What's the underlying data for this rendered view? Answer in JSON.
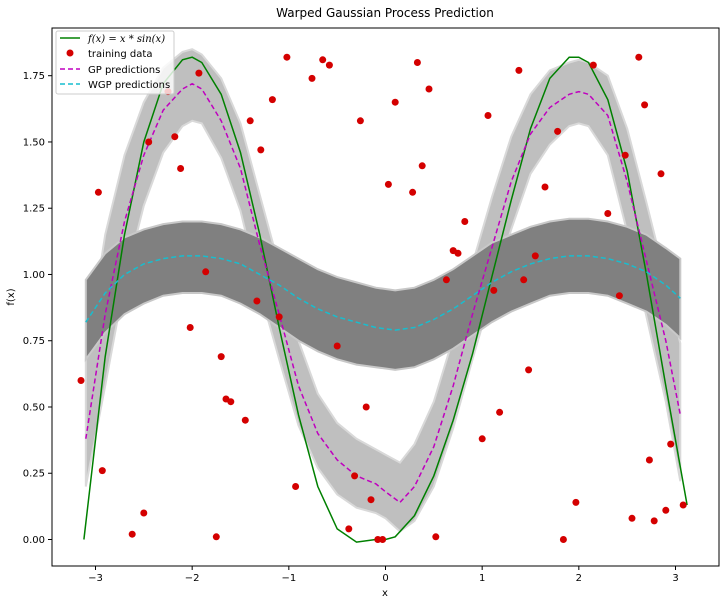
{
  "chart_data": {
    "type": "line",
    "title": "Warped Gaussian Process Prediction",
    "xlabel": "x",
    "ylabel": "f(x)",
    "xlim": [
      -3.45,
      3.45
    ],
    "ylim": [
      -0.1,
      1.93
    ],
    "xticks": [
      -3,
      -2,
      -1,
      0,
      1,
      2,
      3
    ],
    "xtick_labels": [
      "−3",
      "−2",
      "−1",
      "0",
      "1",
      "2",
      "3"
    ],
    "yticks": [
      0,
      0.25,
      0.5,
      0.75,
      1.0,
      1.25,
      1.5,
      1.75
    ],
    "ytick_labels": [
      "0.00",
      "0.25",
      "0.50",
      "0.75",
      "1.00",
      "1.25",
      "1.50",
      "1.75"
    ],
    "legend": {
      "position": "top-left",
      "entries": [
        {
          "label": "f(x) = x * sin(x)",
          "style": "line",
          "color": "#008000",
          "dash": "solid"
        },
        {
          "label": "training data",
          "style": "marker",
          "color": "#d40000"
        },
        {
          "label": "GP predictions",
          "style": "line",
          "color": "#bf00bf",
          "dash": "dashed"
        },
        {
          "label": "WGP predictions",
          "style": "line",
          "color": "#17becf",
          "dash": "dashed"
        }
      ]
    },
    "series": [
      {
        "name": "f(x) = x * sin(x)",
        "color": "#008000",
        "x": [
          -3.12,
          -2.9,
          -2.7,
          -2.5,
          -2.3,
          -2.1,
          -2.0,
          -1.9,
          -1.7,
          -1.5,
          -1.3,
          -1.1,
          -0.9,
          -0.7,
          -0.5,
          -0.3,
          -0.1,
          0.0,
          0.1,
          0.3,
          0.5,
          0.7,
          0.9,
          1.1,
          1.3,
          1.5,
          1.7,
          1.9,
          2.0,
          2.1,
          2.3,
          2.5,
          2.7,
          2.9,
          3.12
        ],
        "y": [
          0.0,
          0.69,
          1.15,
          1.5,
          1.72,
          1.81,
          1.82,
          1.8,
          1.68,
          1.46,
          1.15,
          0.8,
          0.47,
          0.2,
          0.04,
          -0.01,
          0.0,
          0.0,
          0.01,
          0.09,
          0.24,
          0.45,
          0.7,
          0.99,
          1.28,
          1.55,
          1.74,
          1.82,
          1.82,
          1.8,
          1.66,
          1.39,
          1.0,
          0.58,
          0.13
        ]
      },
      {
        "name": "GP predictions",
        "color": "#bf00bf",
        "x": [
          -3.1,
          -2.9,
          -2.7,
          -2.5,
          -2.3,
          -2.1,
          -2.0,
          -1.9,
          -1.7,
          -1.5,
          -1.3,
          -1.1,
          -0.9,
          -0.7,
          -0.5,
          -0.3,
          -0.1,
          0.0,
          0.15,
          0.3,
          0.5,
          0.7,
          0.9,
          1.1,
          1.3,
          1.5,
          1.7,
          1.9,
          2.0,
          2.1,
          2.3,
          2.5,
          2.7,
          2.9,
          3.05
        ],
        "y": [
          0.38,
          0.85,
          1.2,
          1.45,
          1.62,
          1.7,
          1.72,
          1.7,
          1.58,
          1.4,
          1.11,
          0.85,
          0.58,
          0.4,
          0.3,
          0.24,
          0.21,
          0.18,
          0.14,
          0.2,
          0.35,
          0.58,
          0.85,
          1.1,
          1.35,
          1.53,
          1.63,
          1.68,
          1.69,
          1.68,
          1.6,
          1.35,
          1.05,
          0.75,
          0.47
        ]
      },
      {
        "name": "WGP predictions",
        "color": "#17becf",
        "x": [
          -3.1,
          -2.9,
          -2.7,
          -2.5,
          -2.3,
          -2.1,
          -1.9,
          -1.7,
          -1.5,
          -1.3,
          -1.1,
          -0.9,
          -0.7,
          -0.5,
          -0.3,
          -0.1,
          0.1,
          0.3,
          0.5,
          0.7,
          0.9,
          1.1,
          1.3,
          1.5,
          1.7,
          1.9,
          2.1,
          2.3,
          2.5,
          2.7,
          2.9,
          3.05
        ],
        "y": [
          0.82,
          0.93,
          1.0,
          1.04,
          1.06,
          1.07,
          1.07,
          1.06,
          1.04,
          1.0,
          0.96,
          0.91,
          0.87,
          0.84,
          0.82,
          0.8,
          0.79,
          0.8,
          0.83,
          0.87,
          0.92,
          0.97,
          1.01,
          1.04,
          1.06,
          1.07,
          1.07,
          1.06,
          1.04,
          1.01,
          0.96,
          0.91
        ]
      }
    ],
    "gp_band": {
      "x": [
        -3.1,
        -2.9,
        -2.7,
        -2.5,
        -2.3,
        -2.1,
        -2.0,
        -1.9,
        -1.7,
        -1.5,
        -1.3,
        -1.1,
        -0.9,
        -0.7,
        -0.5,
        -0.3,
        -0.1,
        0.0,
        0.15,
        0.3,
        0.5,
        0.7,
        0.9,
        1.1,
        1.3,
        1.5,
        1.7,
        1.9,
        2.0,
        2.1,
        2.3,
        2.5,
        2.7,
        2.9,
        3.05
      ],
      "upper": [
        0.68,
        1.15,
        1.45,
        1.65,
        1.78,
        1.84,
        1.85,
        1.83,
        1.74,
        1.57,
        1.3,
        1.03,
        0.75,
        0.55,
        0.44,
        0.38,
        0.34,
        0.32,
        0.29,
        0.36,
        0.52,
        0.76,
        1.04,
        1.29,
        1.52,
        1.68,
        1.77,
        1.8,
        1.81,
        1.8,
        1.75,
        1.55,
        1.27,
        0.98,
        0.74
      ],
      "lower": [
        0.2,
        0.58,
        0.97,
        1.26,
        1.46,
        1.56,
        1.58,
        1.57,
        1.44,
        1.24,
        0.94,
        0.68,
        0.43,
        0.27,
        0.17,
        0.12,
        0.1,
        0.08,
        0.03,
        0.07,
        0.2,
        0.42,
        0.68,
        0.93,
        1.17,
        1.38,
        1.49,
        1.56,
        1.57,
        1.56,
        1.45,
        1.16,
        0.84,
        0.52,
        0.22
      ]
    },
    "wgp_band": {
      "x": [
        -3.1,
        -2.9,
        -2.7,
        -2.5,
        -2.3,
        -2.1,
        -1.9,
        -1.7,
        -1.5,
        -1.3,
        -1.1,
        -0.9,
        -0.7,
        -0.5,
        -0.3,
        -0.1,
        0.1,
        0.3,
        0.5,
        0.7,
        0.9,
        1.1,
        1.3,
        1.5,
        1.7,
        1.9,
        2.1,
        2.3,
        2.5,
        2.7,
        2.9,
        3.05
      ],
      "upper": [
        0.98,
        1.08,
        1.14,
        1.17,
        1.19,
        1.2,
        1.2,
        1.19,
        1.17,
        1.14,
        1.1,
        1.06,
        1.02,
        0.99,
        0.97,
        0.95,
        0.94,
        0.95,
        0.98,
        1.02,
        1.07,
        1.12,
        1.15,
        1.18,
        1.2,
        1.21,
        1.21,
        1.2,
        1.18,
        1.15,
        1.1,
        1.06
      ],
      "lower": [
        0.68,
        0.78,
        0.85,
        0.89,
        0.92,
        0.93,
        0.93,
        0.92,
        0.89,
        0.85,
        0.8,
        0.75,
        0.71,
        0.68,
        0.66,
        0.65,
        0.64,
        0.65,
        0.68,
        0.72,
        0.77,
        0.82,
        0.86,
        0.89,
        0.92,
        0.93,
        0.93,
        0.92,
        0.89,
        0.86,
        0.81,
        0.76
      ]
    },
    "training_data": {
      "x": [
        -3.15,
        -2.97,
        -2.93,
        -2.62,
        -2.5,
        -2.45,
        -2.25,
        -2.18,
        -2.12,
        -2.02,
        -1.93,
        -1.86,
        -1.75,
        -1.7,
        -1.65,
        -1.6,
        -1.45,
        -1.4,
        -1.33,
        -1.29,
        -1.17,
        -1.1,
        -1.02,
        -0.93,
        -0.76,
        -0.65,
        -0.58,
        -0.5,
        -0.38,
        -0.32,
        -0.26,
        -0.2,
        -0.15,
        -0.08,
        -0.03,
        0.03,
        0.1,
        0.28,
        0.33,
        0.38,
        0.45,
        0.52,
        0.63,
        0.7,
        0.75,
        0.82,
        1.0,
        1.06,
        1.12,
        1.18,
        1.38,
        1.43,
        1.48,
        1.55,
        1.65,
        1.78,
        1.84,
        1.97,
        2.15,
        2.3,
        2.42,
        2.48,
        2.55,
        2.62,
        2.68,
        2.73,
        2.78,
        2.85,
        2.9,
        2.95,
        3.08
      ],
      "y": [
        0.6,
        1.31,
        0.26,
        0.02,
        0.1,
        1.5,
        1.69,
        1.52,
        1.4,
        0.8,
        1.76,
        1.01,
        0.01,
        0.69,
        0.53,
        0.52,
        0.45,
        1.58,
        0.9,
        1.47,
        1.66,
        0.84,
        1.82,
        0.2,
        1.74,
        1.81,
        1.79,
        0.73,
        0.04,
        0.24,
        1.58,
        0.5,
        0.15,
        0.0,
        0.0,
        1.34,
        1.65,
        1.31,
        1.8,
        1.41,
        1.7,
        0.01,
        0.98,
        1.09,
        1.08,
        1.2,
        0.38,
        1.6,
        0.94,
        0.48,
        1.77,
        0.98,
        0.64,
        1.07,
        1.33,
        1.54,
        0.0,
        0.14,
        1.79,
        1.23,
        0.92,
        1.45,
        0.08,
        1.82,
        1.64,
        0.3,
        0.07,
        1.38,
        0.11,
        0.36,
        0.13
      ]
    }
  }
}
